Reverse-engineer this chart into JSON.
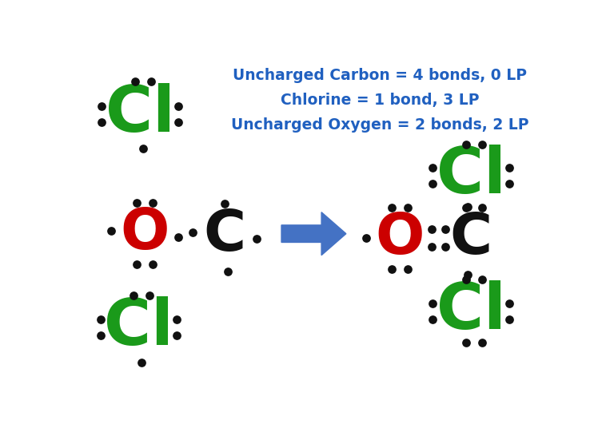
{
  "bg_color": "#ffffff",
  "title_lines": [
    "Uncharged Carbon = 4 bonds, 0 LP",
    "Chlorine = 1 bond, 3 LP",
    "Uncharged Oxygen = 2 bonds, 2 LP"
  ],
  "title_color": "#2060c0",
  "title_fontsize": 13.5,
  "cl_color": "#1a9a1a",
  "o_color": "#cc0000",
  "c_color": "#111111",
  "dot_color": "#111111",
  "dot_size": 60,
  "arrow_color": "#4472c4"
}
